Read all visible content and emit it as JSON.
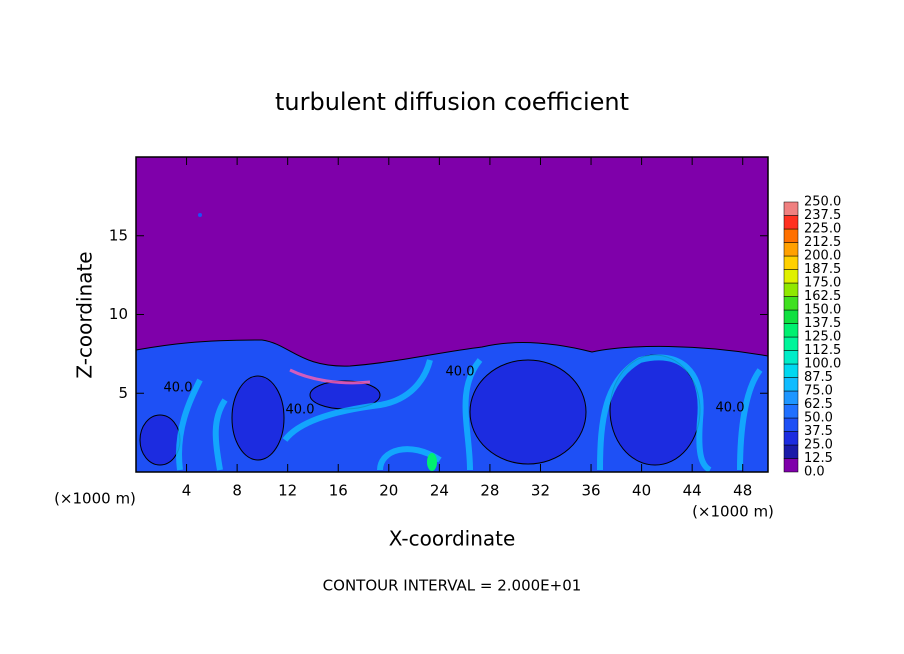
{
  "chart_data": {
    "type": "contour",
    "title": "turbulent diffusion coefficient",
    "x_label": "X-coordinate",
    "y_label": "Z-coordinate",
    "x_unit": "(×1000 m)",
    "footnote": "CONTOUR INTERVAL = 2.000E+01",
    "background_color": "#7f00aa",
    "xlim": [
      0,
      50
    ],
    "xticks": [
      4,
      8,
      12,
      16,
      20,
      24,
      28,
      32,
      36,
      40,
      44,
      48
    ],
    "ylim": [
      0,
      20
    ],
    "yticks": [
      5,
      10,
      15
    ],
    "contour_labels": [
      "40.0",
      "40.0",
      "40.0",
      "40.0"
    ],
    "levels": [
      {
        "value": 0,
        "label": "0.0"
      },
      12.5,
      {
        "value": 25,
        "label": "25.0"
      },
      37.5,
      {
        "value": 50,
        "label": "50.0"
      },
      62.5,
      {
        "value": 75,
        "label": "75.0"
      },
      87.5,
      {
        "value": 100,
        "label": "100.0"
      },
      112.5,
      {
        "value": 125,
        "label": "125.0"
      },
      137.5,
      {
        "value": 150,
        "label": "150.0"
      },
      162.5,
      {
        "value": 175,
        "label": "175.0"
      },
      187.5,
      {
        "value": 200,
        "label": "200.0"
      },
      212.5,
      {
        "value": 225,
        "label": "225.0"
      },
      237.5,
      {
        "value": 250,
        "label": "250.0"
      }
    ],
    "level_colors": [
      "#7f00aa",
      "#1a1aa8",
      "#1c2ce0",
      "#1e50f5",
      "#2070ff",
      "#1e96ff",
      "#10bcff",
      "#00d8f0",
      "#00ecc8",
      "#00f59a",
      "#00f070",
      "#10e040",
      "#40e020",
      "#90e800",
      "#e0f000",
      "#ffd000",
      "#ffa000",
      "#ff7000",
      "#ff3020",
      "#f08080"
    ]
  }
}
